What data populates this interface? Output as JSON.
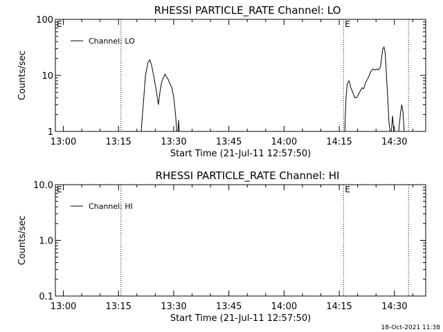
{
  "chart_data": [
    {
      "type": "line",
      "title": "RHESSI PARTICLE_RATE Channel: LO",
      "xlabel": "Start Time (21-Jul-11 12:57:50)",
      "ylabel": "Counts/sec",
      "yscale": "log",
      "ylim": [
        1,
        100
      ],
      "xlim": [
        "12:57:50",
        "14:38:30"
      ],
      "x_ticks": [
        "13:00",
        "13:15",
        "13:30",
        "13:45",
        "14:00",
        "14:15",
        "14:30"
      ],
      "y_ticks": [
        "1",
        "10",
        "100"
      ],
      "legend": {
        "entries": [
          "Channel: LO"
        ],
        "placement": "top-left"
      },
      "markers": [
        {
          "time": "12:57:50",
          "label": "E"
        },
        {
          "time": "13:15:40",
          "label": ""
        },
        {
          "time": "14:16:10",
          "label": "E"
        },
        {
          "time": "14:33:50",
          "label": ""
        }
      ],
      "series": [
        {
          "name": "Channel: LO",
          "segments": [
            [
              [
                "13:21:10",
                1
              ],
              [
                "13:22:20",
                10
              ],
              [
                "13:23:00",
                17
              ],
              [
                "13:23:30",
                19
              ],
              [
                "13:24:00",
                15
              ],
              [
                "13:24:40",
                9
              ],
              [
                "13:25:20",
                5
              ],
              [
                "13:25:50",
                3
              ],
              [
                "13:26:20",
                5.5
              ],
              [
                "13:26:50",
                8
              ],
              [
                "13:27:20",
                9.5
              ],
              [
                "13:27:40",
                10.5
              ],
              [
                "13:28:00",
                9.5
              ],
              [
                "13:28:30",
                8.5
              ],
              [
                "13:29:00",
                7
              ],
              [
                "13:29:30",
                6
              ],
              [
                "13:30:00",
                4
              ],
              [
                "13:30:30",
                2
              ],
              [
                "13:30:50",
                1
              ]
            ],
            [
              [
                "13:31:10",
                1
              ],
              [
                "13:31:20",
                1.6
              ],
              [
                "13:31:30",
                1
              ]
            ],
            [
              [
                "14:16:30",
                1
              ],
              [
                "14:16:50",
                4
              ],
              [
                "14:17:10",
                7
              ],
              [
                "14:17:40",
                8
              ],
              [
                "14:18:10",
                6
              ],
              [
                "14:18:40",
                5
              ],
              [
                "14:19:10",
                4
              ],
              [
                "14:19:40",
                4
              ],
              [
                "14:20:10",
                4.5
              ],
              [
                "14:20:40",
                5.2
              ],
              [
                "14:21:10",
                6
              ],
              [
                "14:21:40",
                5.8
              ],
              [
                "14:22:10",
                7.5
              ],
              [
                "14:22:40",
                8.5
              ],
              [
                "14:23:10",
                10
              ],
              [
                "14:23:40",
                12
              ],
              [
                "14:24:10",
                13
              ],
              [
                "14:24:40",
                12.5
              ],
              [
                "14:25:10",
                13
              ],
              [
                "14:25:40",
                12.5
              ],
              [
                "14:26:10",
                14
              ],
              [
                "14:26:30",
                20
              ],
              [
                "14:26:50",
                30
              ],
              [
                "14:27:10",
                32
              ],
              [
                "14:27:30",
                25
              ],
              [
                "14:27:50",
                10
              ],
              [
                "14:28:10",
                4
              ],
              [
                "14:28:30",
                1.5
              ],
              [
                "14:28:50",
                1
              ]
            ],
            [
              [
                "14:29:10",
                1
              ],
              [
                "14:29:30",
                1.9
              ],
              [
                "14:29:50",
                1
              ]
            ],
            [
              [
                "14:31:10",
                1
              ],
              [
                "14:31:40",
                2.2
              ],
              [
                "14:32:00",
                3
              ],
              [
                "14:32:20",
                2.2
              ],
              [
                "14:32:40",
                1
              ]
            ]
          ]
        }
      ]
    },
    {
      "type": "line",
      "title": "RHESSI PARTICLE_RATE Channel: HI",
      "xlabel": "Start Time (21-Jul-11 12:57:50)",
      "ylabel": "Counts/sec",
      "yscale": "log",
      "ylim": [
        0.1,
        10
      ],
      "xlim": [
        "12:57:50",
        "14:38:30"
      ],
      "x_ticks": [
        "13:00",
        "13:15",
        "13:30",
        "13:45",
        "14:00",
        "14:15",
        "14:30"
      ],
      "y_ticks": [
        "0.1",
        "1.0",
        "10.0"
      ],
      "legend": {
        "entries": [
          "Channel: HI"
        ],
        "placement": "top-left"
      },
      "markers": [
        {
          "time": "12:57:50",
          "label": "E"
        },
        {
          "time": "13:15:40",
          "label": ""
        },
        {
          "time": "14:16:10",
          "label": "E"
        },
        {
          "time": "14:33:50",
          "label": ""
        }
      ],
      "series": [
        {
          "name": "Channel: HI",
          "segments": []
        }
      ]
    }
  ],
  "timestamp": "18-Oct-2021 11:38"
}
